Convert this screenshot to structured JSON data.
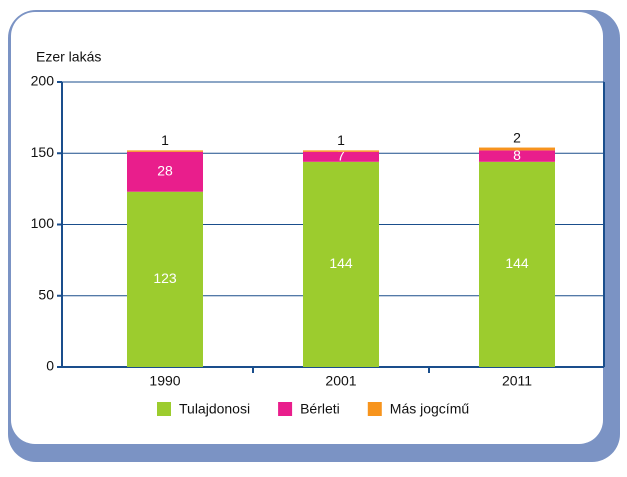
{
  "chart_data": {
    "type": "stacked-bar",
    "y_label": "Ezer lakás",
    "categories": [
      "1990",
      "2001",
      "2011"
    ],
    "series": [
      {
        "name": "Tulajdonosi",
        "color": "#9ccc2e",
        "values": [
          123,
          144,
          144
        ]
      },
      {
        "name": "Bérleti",
        "color": "#e91e8c",
        "values": [
          28,
          7,
          8
        ]
      },
      {
        "name": "Más jogcímű",
        "color": "#f7941d",
        "values": [
          1,
          1,
          2
        ]
      }
    ],
    "ylim": [
      0,
      200
    ],
    "yticks": [
      0,
      50,
      100,
      150,
      200
    ],
    "grid": true
  }
}
